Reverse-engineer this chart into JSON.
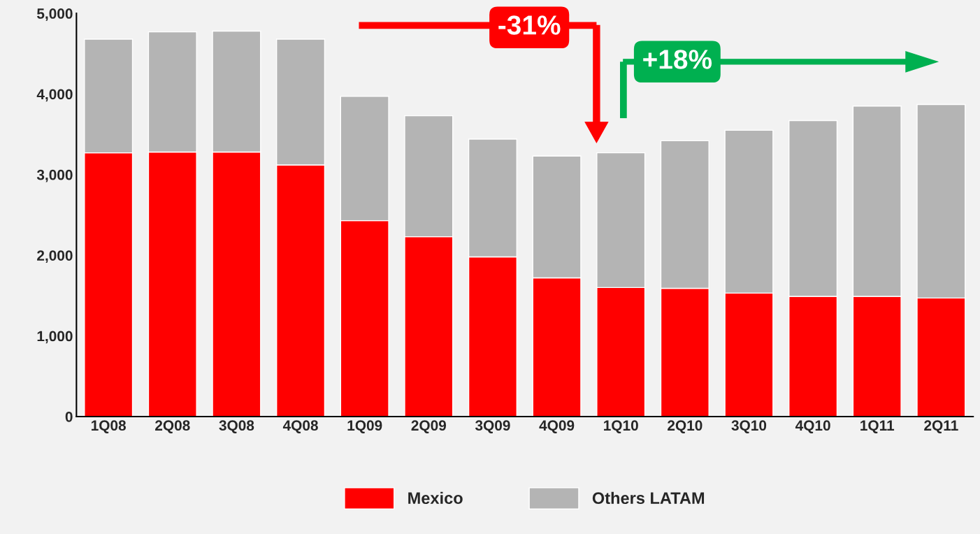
{
  "chart_data": {
    "type": "bar",
    "stacked": true,
    "categories": [
      "1Q08",
      "2Q08",
      "3Q08",
      "4Q08",
      "1Q09",
      "2Q09",
      "3Q09",
      "4Q09",
      "1Q10",
      "2Q10",
      "3Q10",
      "4Q10",
      "1Q11",
      "2Q11"
    ],
    "series": [
      {
        "name": "Mexico",
        "color": "#ff0000",
        "values": [
          3270,
          3280,
          3280,
          3120,
          2430,
          2230,
          1980,
          1720,
          1600,
          1590,
          1530,
          1490,
          1490,
          1470
        ]
      },
      {
        "name": "Others LATAM",
        "color": "#b4b4b4",
        "values": [
          1410,
          1490,
          1500,
          1560,
          1540,
          1500,
          1460,
          1510,
          1670,
          1830,
          2020,
          2180,
          2360,
          2400
        ]
      }
    ],
    "ylim": [
      0,
      5000
    ],
    "yticks": [
      0,
      {
        "value": 1000,
        "label": "1,000"
      },
      {
        "value": 2000,
        "label": "2,000"
      },
      {
        "value": 3000,
        "label": "3,000"
      },
      {
        "value": 4000,
        "label": "4,000"
      },
      {
        "value": 5000,
        "label": "5,000"
      }
    ],
    "grid": false,
    "legend": "bottom",
    "annotations": [
      "-31%",
      "+18%"
    ]
  }
}
